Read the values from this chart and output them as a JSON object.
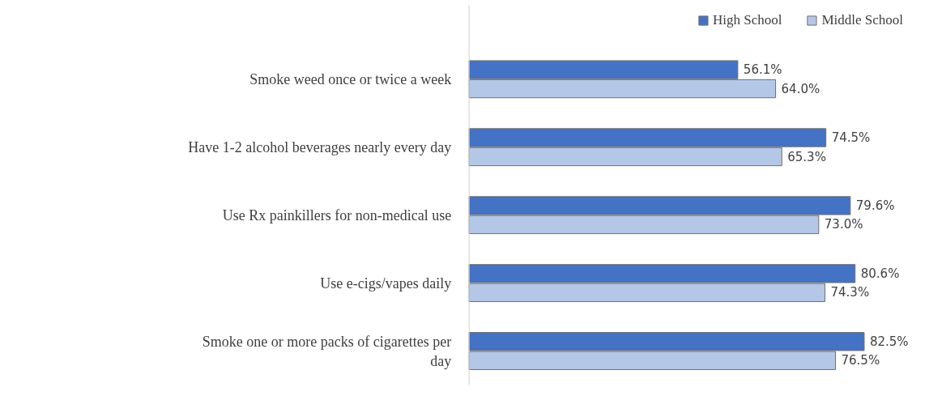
{
  "chart_data": {
    "type": "bar",
    "orientation": "horizontal",
    "categories": [
      "Smoke weed once or twice a week",
      "Have 1-2 alcohol beverages nearly every day",
      "Use Rx painkillers for non-medical use",
      "Use e-cigs/vapes daily",
      "Smoke one or more packs of cigarettes per day"
    ],
    "series": [
      {
        "name": "High School",
        "color": "#4472c4",
        "values": [
          56.1,
          74.5,
          79.6,
          80.6,
          82.5
        ],
        "value_labels": [
          "56.1%",
          "74.5%",
          "79.6%",
          "80.6%",
          "82.5%"
        ]
      },
      {
        "name": "Middle School",
        "color": "#b4c7e7",
        "values": [
          64.0,
          65.3,
          73.0,
          74.3,
          76.5
        ],
        "value_labels": [
          "64.0%",
          "65.3%",
          "73.0%",
          "74.3%",
          "76.5%"
        ]
      }
    ],
    "legend": "top",
    "grid": false
  }
}
